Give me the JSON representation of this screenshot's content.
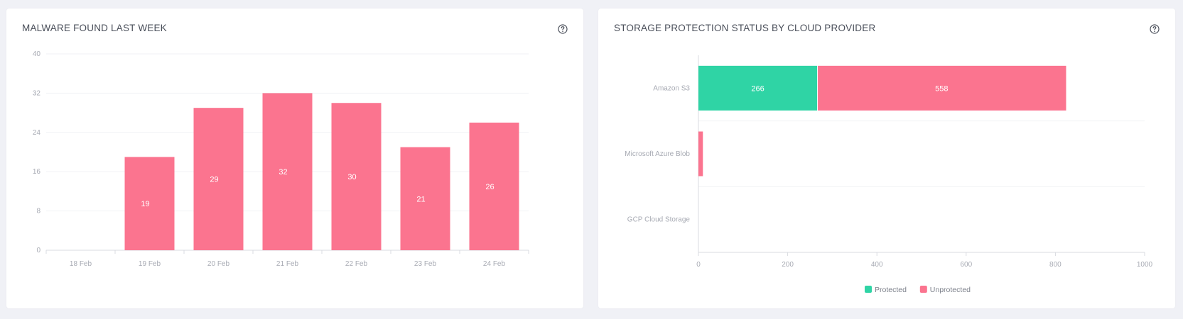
{
  "colors": {
    "background": "#f0f1f6",
    "card": "#ffffff",
    "bar_pink": "#fb748f",
    "bar_green": "#2fd4a5",
    "grid": "#f1f2f5",
    "axis": "#d9dbe0",
    "tick_text": "#a7aab3"
  },
  "left_card": {
    "title": "MALWARE FOUND LAST WEEK",
    "help_icon": "question-circle-icon"
  },
  "right_card": {
    "title": "STORAGE PROTECTION STATUS BY CLOUD PROVIDER",
    "help_icon": "question-circle-icon"
  },
  "chart_data": [
    {
      "type": "bar",
      "categories": [
        "18 Feb",
        "19 Feb",
        "20 Feb",
        "21 Feb",
        "22 Feb",
        "23 Feb",
        "24 Feb"
      ],
      "values": [
        0,
        19,
        29,
        32,
        30,
        21,
        26
      ],
      "data_labels": [
        "",
        "19",
        "29",
        "32",
        "30",
        "21",
        "26"
      ],
      "ylim": [
        0,
        40
      ],
      "yticks": [
        0,
        8,
        16,
        24,
        32,
        40
      ],
      "ytick_labels": [
        "0",
        "8",
        "16",
        "24",
        "32",
        "40"
      ],
      "grid": true,
      "color": "#fb748f"
    },
    {
      "type": "bar",
      "orientation": "horizontal",
      "stacked": true,
      "categories": [
        "Amazon S3",
        "Microsoft Azure Blob",
        "GCP Cloud Storage"
      ],
      "series": [
        {
          "name": "Protected",
          "values": [
            266,
            0,
            0
          ],
          "data_labels": [
            "266",
            "",
            ""
          ],
          "color": "#2fd4a5"
        },
        {
          "name": "Unprotected",
          "values": [
            558,
            10,
            0
          ],
          "data_labels": [
            "558",
            "",
            ""
          ],
          "color": "#fb748f"
        }
      ],
      "xlim": [
        0,
        1000
      ],
      "xticks": [
        0,
        200,
        400,
        600,
        800,
        1000
      ],
      "xtick_labels": [
        "0",
        "200",
        "400",
        "600",
        "800",
        "1000"
      ],
      "grid": true,
      "legend": {
        "position": "bottom",
        "labels": [
          "Protected",
          "Unprotected"
        ]
      }
    }
  ]
}
